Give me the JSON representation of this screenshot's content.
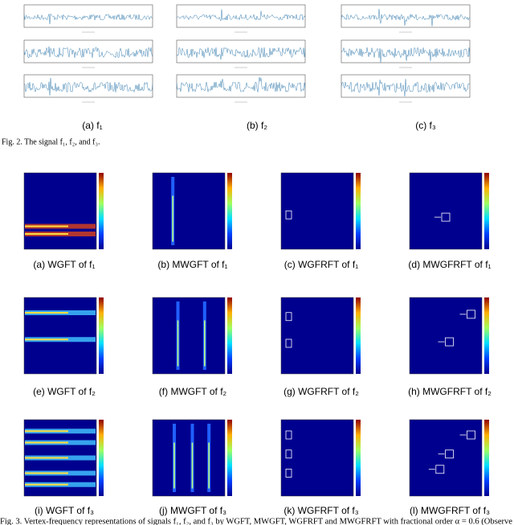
{
  "fig2": {
    "subcaptions": [
      "(a) f₁",
      "(b) f₂",
      "(c) f₃"
    ],
    "caption": "Fig. 2.  The signal f₁, f₂, and f₃."
  },
  "fig3": {
    "subcaptions": [
      "(a) WGFT of f₁",
      "(b) MWGFT of f₁",
      "(c) WGFRFT of f₁",
      "(d) MWGFRFT of f₁",
      "(e) WGFT of f₂",
      "(f) MWGFT of f₂",
      "(g) WGFRFT of f₂",
      "(h) MWGFRFT of f₂",
      "(i) WGFT of f₃",
      "(j) MWGFT of f₃",
      "(k) WGFRFT of f₃",
      "(l) MWGFRFT of f₃"
    ],
    "caption": "Fig. 3.  Vertex-frequency representations of signals f₁, f₂, and f₃ by WGFT, MWGFT, WGFRFT and MWGFRFT with fractional order α = 0.6 (Observe"
  }
}
